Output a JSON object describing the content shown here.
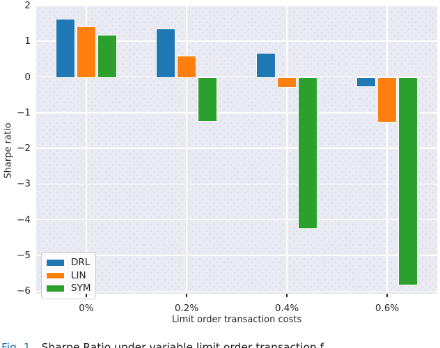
{
  "chart_data": {
    "type": "bar",
    "title": "",
    "categories": [
      "0%",
      "0.2%",
      "0.4%",
      "0.6%"
    ],
    "series": [
      {
        "name": "DRL",
        "color": "#1f77b4",
        "values": [
          1.63,
          1.35,
          0.67,
          -0.25
        ]
      },
      {
        "name": "LIN",
        "color": "#ff7f0e",
        "values": [
          1.41,
          0.6,
          -0.28,
          -1.25
        ]
      },
      {
        "name": "SYM",
        "color": "#2ca02c",
        "values": [
          1.18,
          -1.22,
          -4.23,
          -5.8
        ]
      }
    ],
    "xlabel": "Limit order transaction costs",
    "ylabel": "Sharpe ratio",
    "yticks": [
      2,
      1,
      0,
      -1,
      -2,
      -3,
      -4,
      -5,
      -6
    ],
    "ylim": [
      -6.1,
      2.0
    ],
    "grid": true,
    "legend_position": "lower left",
    "plot_background": "#eaeaf2",
    "grid_color": "#ffffff"
  },
  "caption": {
    "prefix": "Fig. 1.",
    "text": "Sharpe Ratio under variable limit order transaction f"
  }
}
